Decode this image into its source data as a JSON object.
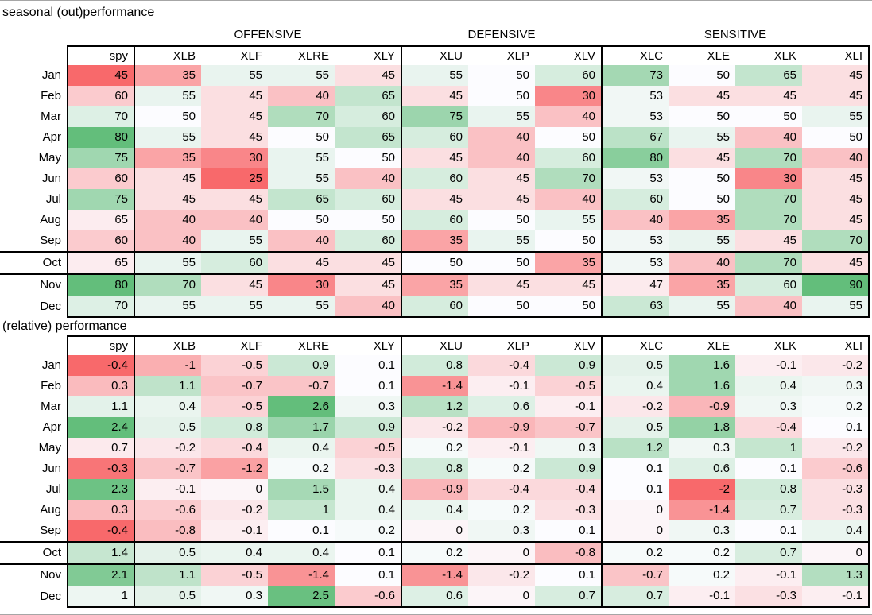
{
  "colors": {
    "background": "#FFFFFF",
    "border": "#000000",
    "edge_line": "#A6A6A6",
    "text": "#000000",
    "scale_min_red": "#F8696B",
    "scale_mid_white": "#FCFCFF",
    "scale_max_green": "#63BE7B"
  },
  "chart_data": [
    {
      "type": "heatmap",
      "title": "seasonal (out)performance",
      "show_group_header": true,
      "group_headers": [
        {
          "label": "OFFENSIVE",
          "span": 4
        },
        {
          "label": "DEFENSIVE",
          "span": 3
        },
        {
          "label": "SENSITIVE",
          "span": 4
        }
      ],
      "columns": [
        "spy",
        "XLB",
        "XLF",
        "XLRE",
        "XLY",
        "XLU",
        "XLP",
        "XLV",
        "XLC",
        "XLE",
        "XLK",
        "XLI"
      ],
      "rows": [
        "Jan",
        "Feb",
        "Mar",
        "Apr",
        "May",
        "Jun",
        "Jul",
        "Aug",
        "Sep",
        "Oct",
        "Nov",
        "Dec"
      ],
      "color_scale": {
        "min_color": "#F8696B",
        "mid_color": "#FCFCFF",
        "max_color": "#63BE7B",
        "midpoint": "median",
        "note": "spy column scaled on its own; sector columns share one pooled scale"
      },
      "values": [
        [
          45,
          35,
          55,
          55,
          45,
          55,
          50,
          60,
          73,
          50,
          65,
          45
        ],
        [
          60,
          55,
          45,
          40,
          65,
          45,
          50,
          30,
          53,
          45,
          45,
          45
        ],
        [
          70,
          50,
          45,
          70,
          60,
          75,
          55,
          40,
          53,
          50,
          50,
          55
        ],
        [
          80,
          55,
          45,
          50,
          65,
          60,
          40,
          50,
          67,
          55,
          40,
          50
        ],
        [
          75,
          35,
          30,
          55,
          50,
          45,
          40,
          60,
          80,
          45,
          70,
          40
        ],
        [
          60,
          45,
          25,
          55,
          40,
          60,
          45,
          70,
          53,
          50,
          30,
          45
        ],
        [
          75,
          45,
          45,
          65,
          60,
          45,
          45,
          40,
          60,
          50,
          70,
          45
        ],
        [
          65,
          40,
          40,
          50,
          50,
          60,
          50,
          55,
          40,
          35,
          70,
          45
        ],
        [
          60,
          40,
          55,
          40,
          60,
          35,
          55,
          50,
          53,
          55,
          45,
          70
        ],
        [
          65,
          55,
          60,
          45,
          45,
          50,
          50,
          35,
          53,
          40,
          70,
          45
        ],
        [
          80,
          70,
          45,
          30,
          45,
          35,
          45,
          45,
          47,
          35,
          60,
          90
        ],
        [
          70,
          55,
          55,
          55,
          40,
          60,
          50,
          50,
          63,
          55,
          40,
          55
        ]
      ]
    },
    {
      "type": "heatmap",
      "title": "(relative) performance",
      "show_group_header": false,
      "group_headers": [
        {
          "label": "OFFENSIVE",
          "span": 4
        },
        {
          "label": "DEFENSIVE",
          "span": 3
        },
        {
          "label": "SENSITIVE",
          "span": 4
        }
      ],
      "columns": [
        "spy",
        "XLB",
        "XLF",
        "XLRE",
        "XLY",
        "XLU",
        "XLP",
        "XLV",
        "XLC",
        "XLE",
        "XLK",
        "XLI"
      ],
      "rows": [
        "Jan",
        "Feb",
        "Mar",
        "Apr",
        "May",
        "Jun",
        "Jul",
        "Aug",
        "Sep",
        "Oct",
        "Nov",
        "Dec"
      ],
      "color_scale": {
        "min_color": "#F8696B",
        "mid_color": "#FCFCFF",
        "max_color": "#63BE7B",
        "midpoint": "median",
        "note": "spy column scaled on its own; sector columns share one pooled scale"
      },
      "values": [
        [
          -0.4,
          -1,
          -0.5,
          0.9,
          0.1,
          0.8,
          -0.4,
          0.9,
          0.5,
          1.6,
          -0.1,
          -0.2
        ],
        [
          0.3,
          1.1,
          -0.7,
          -0.7,
          0.1,
          -1.4,
          -0.1,
          -0.5,
          0.4,
          1.6,
          0.4,
          0.3
        ],
        [
          1.1,
          0.4,
          -0.5,
          2.6,
          0.3,
          1.2,
          0.6,
          -0.1,
          -0.2,
          -0.9,
          0.3,
          0.2
        ],
        [
          2.4,
          0.5,
          0.8,
          1.7,
          0.9,
          -0.2,
          -0.9,
          -0.7,
          0.5,
          1.8,
          -0.4,
          0.1
        ],
        [
          0.7,
          -0.2,
          -0.4,
          0.4,
          -0.5,
          0.2,
          -0.1,
          0.3,
          1.2,
          0.3,
          1,
          -0.2
        ],
        [
          -0.3,
          -0.7,
          -1.2,
          0.2,
          -0.3,
          0.8,
          0.2,
          0.9,
          0.1,
          0.6,
          0.1,
          -0.6
        ],
        [
          2.3,
          -0.1,
          0,
          1.5,
          0.4,
          -0.9,
          -0.4,
          -0.4,
          0.1,
          -2,
          0.8,
          -0.3
        ],
        [
          0.3,
          -0.6,
          -0.2,
          1,
          0.4,
          0.4,
          0.2,
          -0.3,
          0,
          -1.4,
          0.7,
          -0.3
        ],
        [
          -0.4,
          -0.8,
          -0.1,
          0.1,
          0.2,
          0,
          0.3,
          0.1,
          0,
          0.3,
          0.1,
          0.4
        ],
        [
          1.4,
          0.5,
          0.4,
          0.4,
          0.1,
          0.2,
          0,
          -0.8,
          0.2,
          0.2,
          0.7,
          0
        ],
        [
          2.1,
          1.1,
          -0.5,
          -1.4,
          0.1,
          -1.4,
          -0.2,
          0.1,
          -0.7,
          0.2,
          -0.1,
          1.3
        ],
        [
          1,
          0.5,
          0.3,
          2.5,
          -0.6,
          0.6,
          0,
          0.7,
          0.7,
          -0.1,
          -0.3,
          -0.1
        ]
      ]
    }
  ]
}
